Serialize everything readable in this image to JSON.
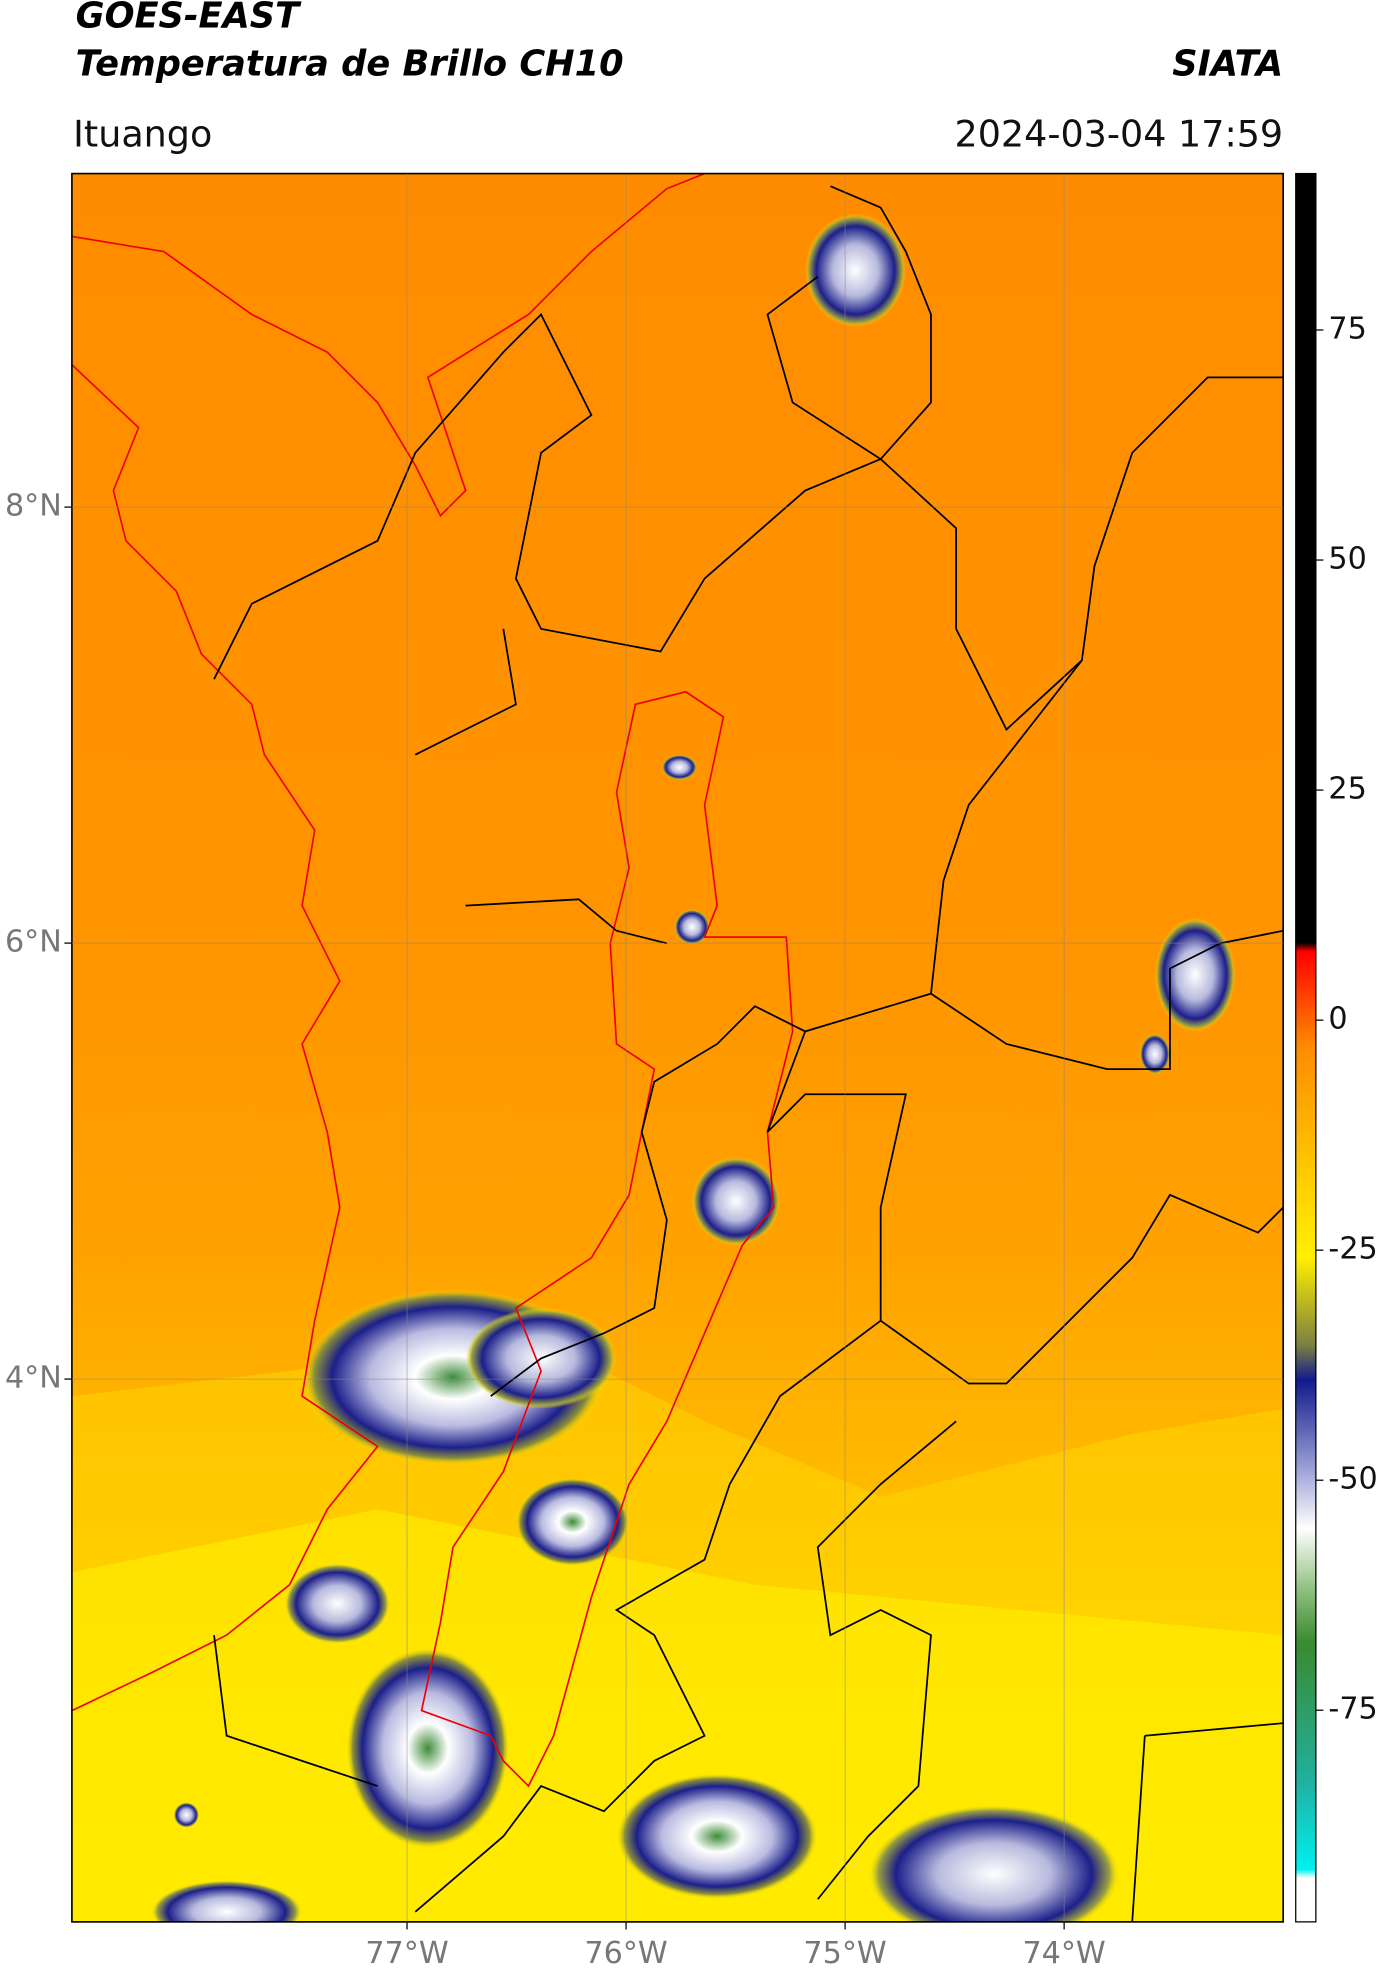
{
  "header": {
    "satellite": "GOES-EAST",
    "product": "Temperatura de Brillo CH10",
    "brand": "SIATA",
    "location": "Ituango",
    "datetime": "2024-03-04 17:59"
  },
  "map": {
    "xlim": [
      -78.53,
      -73.0
    ],
    "ylim": [
      1.51,
      9.53
    ],
    "xticks": [
      {
        "value": -77,
        "label": "77°W"
      },
      {
        "value": -76,
        "label": "76°W"
      },
      {
        "value": -75,
        "label": "75°W"
      },
      {
        "value": -74,
        "label": "74°W"
      }
    ],
    "yticks": [
      {
        "value": 8,
        "label": "8°N"
      },
      {
        "value": 6,
        "label": "6°N"
      },
      {
        "value": 4,
        "label": "4°N"
      }
    ],
    "grid": true
  },
  "colorbar": {
    "lim": [
      -98,
      92
    ],
    "ticks": [
      75,
      50,
      25,
      0,
      -25,
      -50,
      -75
    ]
  }
}
